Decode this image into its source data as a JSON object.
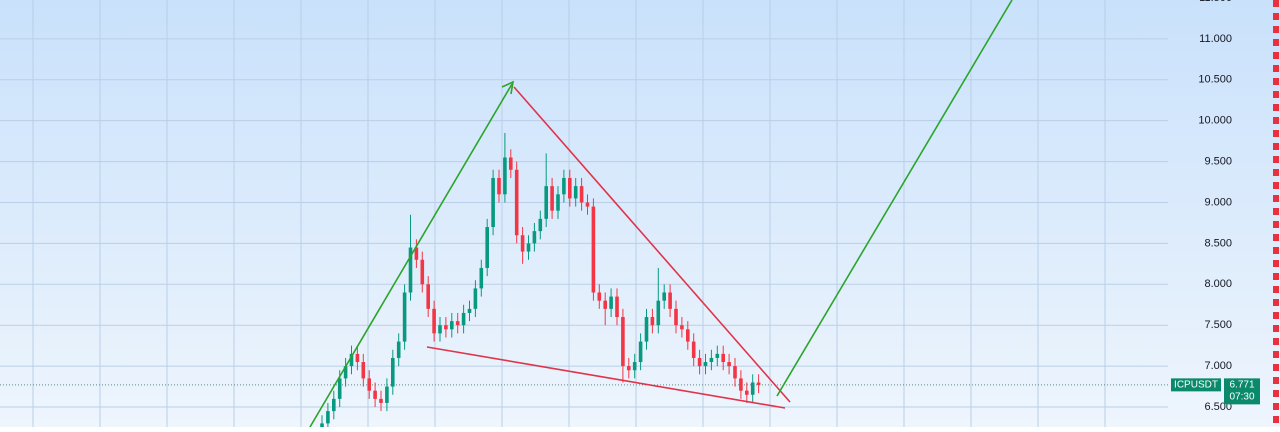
{
  "chart_data": {
    "type": "candlestick",
    "up_color": "#089981",
    "down_color": "#f23645",
    "ylim": [
      6.256,
      11.475
    ],
    "yticks": [
      {
        "value": 6.5,
        "label": "6.500"
      },
      {
        "value": 7,
        "label": "7.000"
      },
      {
        "value": 7.5,
        "label": "7.500"
      },
      {
        "value": 8,
        "label": "8.000"
      },
      {
        "value": 8.5,
        "label": "8.500"
      },
      {
        "value": 9,
        "label": "9.000"
      },
      {
        "value": 9.5,
        "label": "9.500"
      },
      {
        "value": 10,
        "label": "10.000"
      },
      {
        "value": 10.5,
        "label": "10.500"
      },
      {
        "value": 11,
        "label": "11.000"
      },
      {
        "value": 11.5,
        "label": "11.500"
      }
    ],
    "grid": true,
    "open": [
      6.2,
      6.3,
      6.45,
      6.6,
      6.85,
      7.0,
      7.15,
      7.05,
      6.85,
      6.7,
      6.6,
      6.55,
      6.75,
      7.1,
      7.3,
      7.9,
      8.45,
      8.3,
      8.0,
      7.7,
      7.4,
      7.5,
      7.45,
      7.55,
      7.5,
      7.65,
      7.7,
      7.95,
      8.2,
      8.7,
      9.3,
      9.1,
      9.55,
      9.4,
      8.6,
      8.4,
      8.5,
      8.65,
      8.8,
      9.2,
      8.9,
      9.1,
      9.3,
      9.05,
      9.2,
      9.0,
      8.95,
      7.9,
      7.8,
      7.7,
      7.85,
      7.6,
      7.0,
      6.95,
      7.05,
      7.3,
      7.6,
      7.5,
      7.8,
      7.9,
      7.7,
      7.5,
      7.45,
      7.3,
      7.1,
      7.0,
      7.05,
      7.1,
      7.15,
      7.05,
      7.0,
      6.85,
      6.7,
      6.65,
      6.8
    ],
    "high": [
      6.4,
      6.55,
      6.7,
      6.95,
      7.1,
      7.25,
      7.25,
      7.15,
      6.95,
      6.8,
      6.7,
      6.85,
      7.2,
      7.4,
      8.0,
      8.85,
      8.55,
      8.4,
      8.1,
      7.8,
      7.6,
      7.6,
      7.65,
      7.65,
      7.75,
      7.8,
      8.05,
      8.3,
      8.8,
      9.4,
      9.4,
      9.85,
      9.65,
      9.5,
      8.7,
      8.6,
      8.75,
      8.9,
      9.6,
      9.3,
      9.2,
      9.4,
      9.4,
      9.3,
      9.3,
      9.1,
      9.05,
      8.0,
      7.9,
      7.95,
      7.95,
      7.7,
      7.1,
      7.15,
      7.4,
      7.7,
      7.7,
      8.2,
      8.0,
      8.0,
      7.8,
      7.6,
      7.55,
      7.4,
      7.2,
      7.15,
      7.2,
      7.25,
      7.25,
      7.15,
      7.1,
      6.95,
      6.8,
      6.9,
      6.9
    ],
    "low": [
      6.1,
      6.2,
      6.35,
      6.5,
      6.75,
      6.9,
      6.95,
      6.75,
      6.6,
      6.5,
      6.45,
      6.45,
      6.65,
      7.0,
      7.2,
      7.8,
      8.2,
      7.9,
      7.6,
      7.3,
      7.3,
      7.35,
      7.35,
      7.4,
      7.4,
      7.55,
      7.6,
      7.85,
      8.1,
      8.6,
      9.0,
      9.0,
      9.3,
      8.5,
      8.25,
      8.3,
      8.4,
      8.55,
      8.7,
      8.8,
      8.8,
      9.0,
      8.95,
      8.95,
      8.9,
      8.85,
      7.8,
      7.7,
      7.5,
      7.6,
      7.5,
      6.8,
      6.85,
      6.85,
      6.95,
      7.2,
      7.4,
      7.4,
      7.7,
      7.6,
      7.4,
      7.35,
      7.2,
      7.0,
      6.9,
      6.9,
      6.95,
      7.0,
      6.95,
      6.9,
      6.75,
      6.6,
      6.55,
      6.55,
      6.67
    ],
    "close": [
      6.3,
      6.45,
      6.6,
      6.85,
      7.0,
      7.15,
      7.05,
      6.85,
      6.7,
      6.6,
      6.55,
      6.75,
      7.1,
      7.3,
      7.9,
      8.45,
      8.3,
      8.0,
      7.7,
      7.4,
      7.5,
      7.45,
      7.55,
      7.5,
      7.65,
      7.7,
      7.95,
      8.2,
      8.7,
      9.3,
      9.1,
      9.55,
      9.4,
      8.6,
      8.4,
      8.5,
      8.65,
      8.8,
      9.2,
      8.9,
      9.1,
      9.3,
      9.05,
      9.2,
      9.0,
      8.95,
      7.9,
      7.8,
      7.7,
      7.85,
      7.6,
      7.0,
      6.95,
      7.05,
      7.3,
      7.6,
      7.5,
      7.8,
      7.9,
      7.7,
      7.5,
      7.45,
      7.3,
      7.1,
      7.0,
      7.05,
      7.1,
      7.15,
      7.05,
      7.0,
      6.85,
      6.7,
      6.65,
      6.8,
      6.77
    ],
    "symbol": "ICPUSDT",
    "last_price": {
      "value": 6.771,
      "label": "6.771"
    },
    "countdown": "07:30"
  }
}
